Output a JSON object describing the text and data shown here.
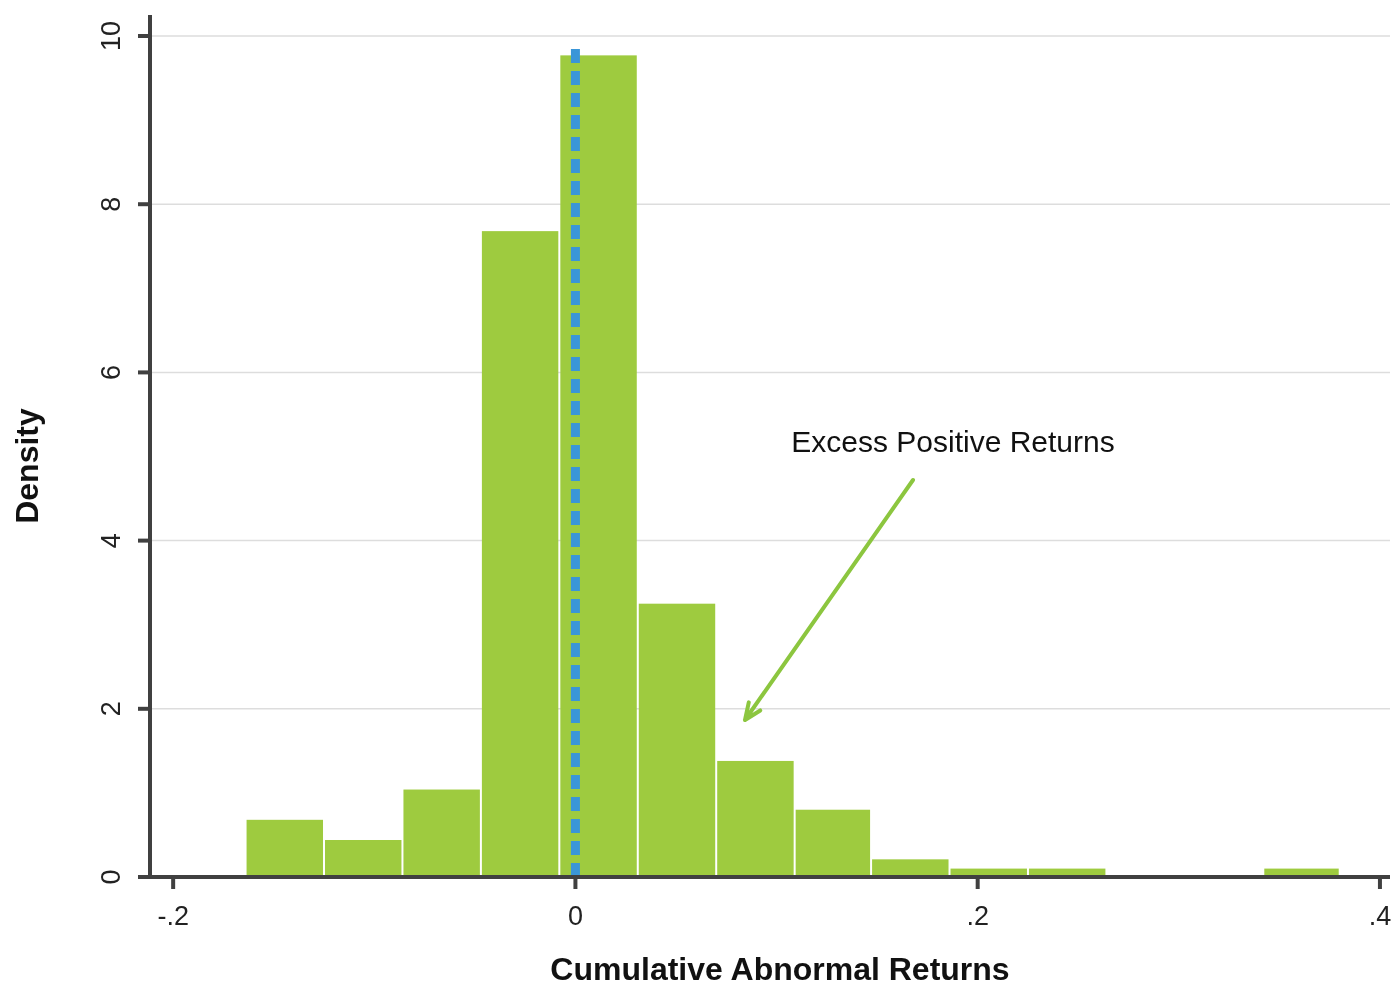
{
  "chart_data": {
    "type": "histogram",
    "xlabel": "Cumulative Abnormal Returns",
    "ylabel": "Density",
    "bins": [
      -0.164,
      -0.125,
      -0.086,
      -0.047,
      -0.008,
      0.031,
      0.07,
      0.109,
      0.147,
      0.186,
      0.225,
      0.264,
      0.342,
      0.38
    ],
    "values": [
      0.68,
      0.44,
      1.04,
      7.68,
      9.77,
      3.25,
      1.38,
      0.8,
      0.21,
      0.1,
      0.1,
      0,
      0.1
    ],
    "color": "#9ecb3f",
    "xlim": [
      -0.214,
      0.405
    ],
    "xticks": [
      {
        "value": -0.2,
        "label": "-.2"
      },
      0,
      {
        "value": 0.2,
        "label": ".2"
      },
      {
        "value": 0.4,
        "label": ".4"
      }
    ],
    "ylim": [
      0,
      10.25
    ],
    "yticks": [
      0,
      2,
      4,
      6,
      8,
      10
    ],
    "grid": "y",
    "ref_lines": [
      {
        "axis": "x",
        "value": 0,
        "color": "#3a96d8",
        "line_style": "dashed"
      }
    ],
    "annotations": [
      "Excess Positive Returns"
    ]
  }
}
